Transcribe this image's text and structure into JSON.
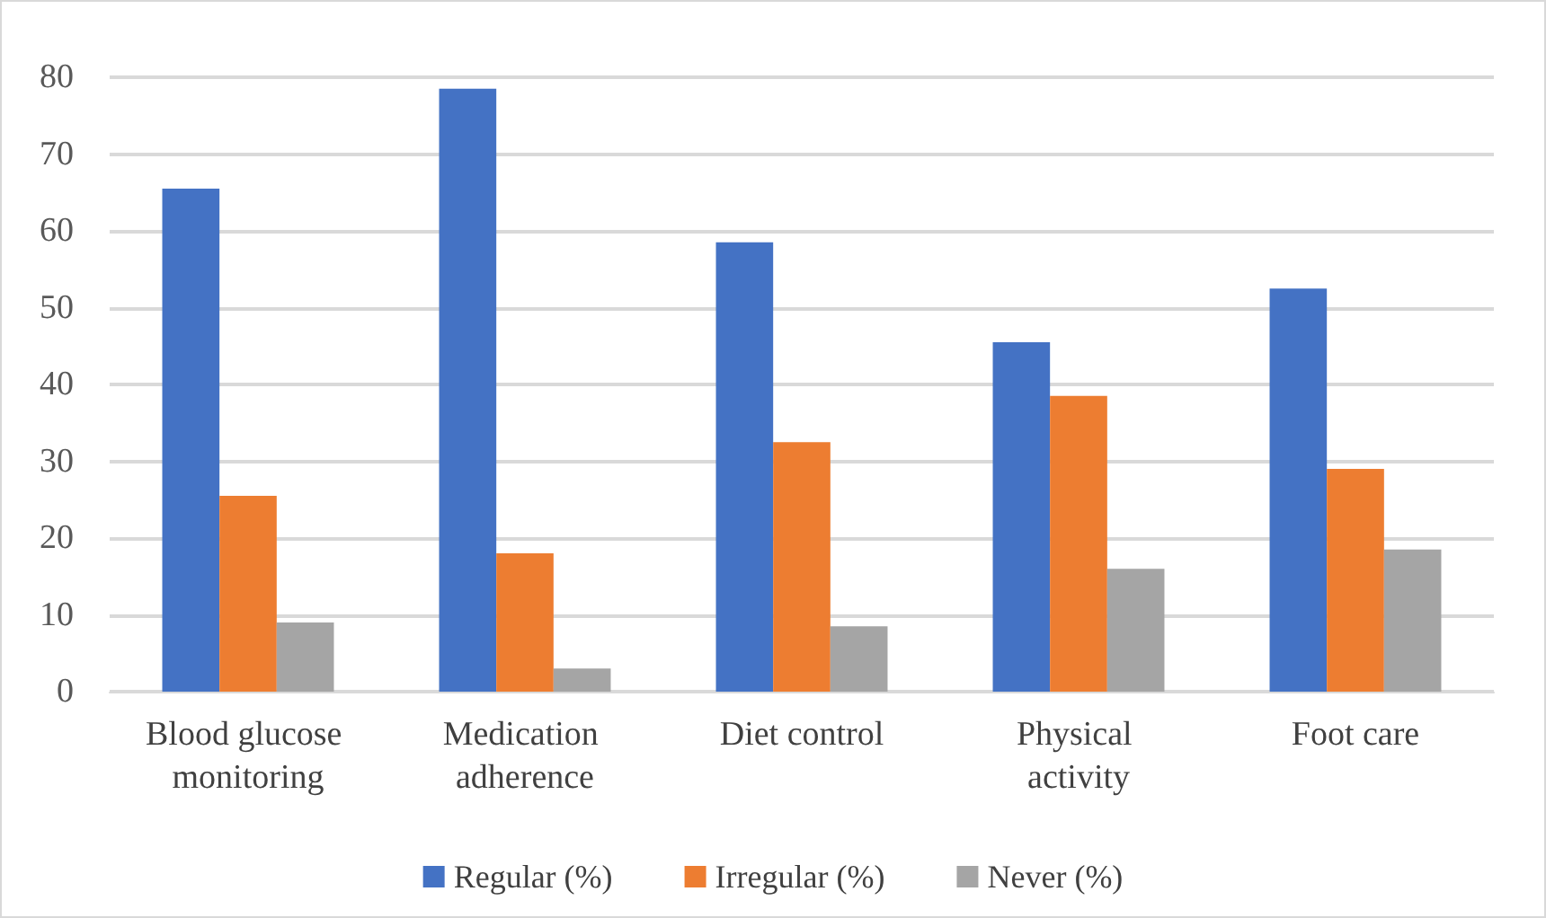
{
  "chart_data": {
    "type": "bar",
    "categories": [
      "Blood glucose monitoring",
      "Medication adherence",
      "Diet control",
      "Physical activity",
      "Foot care"
    ],
    "series": [
      {
        "name": "Regular (%)",
        "color": "#4472c4",
        "values": [
          65.5,
          78.5,
          58.5,
          45.5,
          52.5
        ]
      },
      {
        "name": "Irregular (%)",
        "color": "#ed7d31",
        "values": [
          25.5,
          18,
          32.5,
          38.5,
          29
        ]
      },
      {
        "name": "Never (%)",
        "color": "#a5a5a5",
        "values": [
          9,
          3,
          8.5,
          16,
          18.5
        ]
      }
    ],
    "ylim": [
      0,
      80
    ],
    "yticks": [
      0,
      10,
      20,
      30,
      40,
      50,
      60,
      70,
      80
    ],
    "grid": "y",
    "legend": "bottom"
  }
}
